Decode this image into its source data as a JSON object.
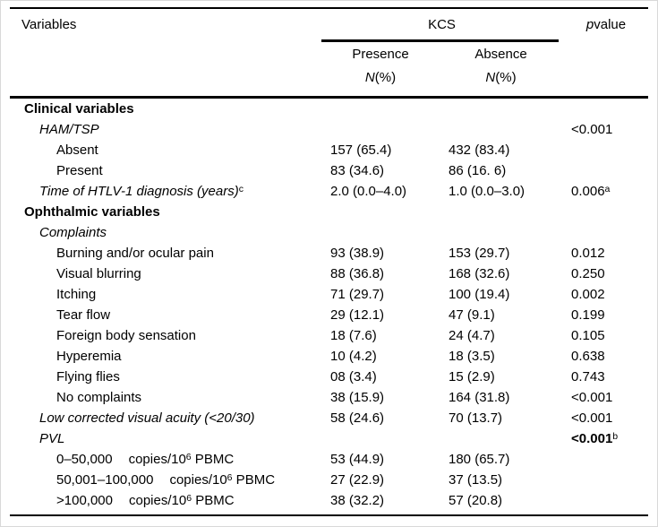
{
  "table": {
    "columns": {
      "variables": "Variables",
      "group": "KCS",
      "presence": "Presence",
      "absence": "Absence",
      "n_label": [
        {
          "t": "N",
          "i": true
        },
        {
          "t": " (%)"
        }
      ],
      "p_value": [
        {
          "t": "p",
          "i": true
        },
        {
          "t": " value"
        }
      ]
    },
    "rows": [
      {
        "indent": 0,
        "label": [
          {
            "t": "Clinical variables",
            "b": true
          }
        ],
        "presence": "",
        "absence": "",
        "p": []
      },
      {
        "indent": 1,
        "label": [
          {
            "t": "HAM/TSP",
            "i": true
          }
        ],
        "presence": "",
        "absence": "",
        "p": [
          {
            "t": "<0.001"
          }
        ]
      },
      {
        "indent": 2,
        "label": [
          {
            "t": "Absent"
          }
        ],
        "presence": "157 (65.4)",
        "absence": "432 (83.4)",
        "p": []
      },
      {
        "indent": 2,
        "label": [
          {
            "t": "Present"
          }
        ],
        "presence": "83 (34.6)",
        "absence": "86 (16. 6)",
        "p": []
      },
      {
        "indent": 1,
        "label": [
          {
            "t": "Time of HTLV-1 diagnosis (years)",
            "i": true
          },
          {
            "t": "c",
            "sup": true
          }
        ],
        "presence": "2.0 (0.0–4.0)",
        "absence": "1.0 (0.0–3.0)",
        "p": [
          {
            "t": "0.006"
          },
          {
            "t": "a",
            "sup": true
          }
        ]
      },
      {
        "indent": 0,
        "label": [
          {
            "t": "Ophthalmic variables",
            "b": true
          }
        ],
        "presence": "",
        "absence": "",
        "p": []
      },
      {
        "indent": 1,
        "label": [
          {
            "t": "Complaints",
            "i": true
          }
        ],
        "presence": "",
        "absence": "",
        "p": []
      },
      {
        "indent": 2,
        "label": [
          {
            "t": "Burning and/or ocular pain"
          }
        ],
        "presence": "93 (38.9)",
        "absence": "153 (29.7)",
        "p": [
          {
            "t": "0.012"
          }
        ]
      },
      {
        "indent": 2,
        "label": [
          {
            "t": "Visual blurring"
          }
        ],
        "presence": "88 (36.8)",
        "absence": "168 (32.6)",
        "p": [
          {
            "t": "0.250"
          }
        ]
      },
      {
        "indent": 2,
        "label": [
          {
            "t": "Itching"
          }
        ],
        "presence": "71 (29.7)",
        "absence": "100 (19.4)",
        "p": [
          {
            "t": "0.002"
          }
        ]
      },
      {
        "indent": 2,
        "label": [
          {
            "t": "Tear flow"
          }
        ],
        "presence": "29 (12.1)",
        "absence": "47 (9.1)",
        "p": [
          {
            "t": "0.199"
          }
        ]
      },
      {
        "indent": 2,
        "label": [
          {
            "t": "Foreign body sensation"
          }
        ],
        "presence": "18 (7.6)",
        "absence": "24 (4.7)",
        "p": [
          {
            "t": "0.105"
          }
        ]
      },
      {
        "indent": 2,
        "label": [
          {
            "t": "Hyperemia"
          }
        ],
        "presence": "10 (4.2)",
        "absence": "18 (3.5)",
        "p": [
          {
            "t": "0.638"
          }
        ]
      },
      {
        "indent": 2,
        "label": [
          {
            "t": "Flying flies"
          }
        ],
        "presence": "08 (3.4)",
        "absence": "15 (2.9)",
        "p": [
          {
            "t": "0.743"
          }
        ]
      },
      {
        "indent": 2,
        "label": [
          {
            "t": "No complaints"
          }
        ],
        "presence": "38 (15.9)",
        "absence": "164 (31.8)",
        "p": [
          {
            "t": "<0.001"
          }
        ]
      },
      {
        "indent": 1,
        "label": [
          {
            "t": "Low corrected visual acuity (<20/30)",
            "i": true
          }
        ],
        "presence": "58 (24.6)",
        "absence": "70 (13.7)",
        "p": [
          {
            "t": "<0.001"
          }
        ]
      },
      {
        "indent": 1,
        "label": [
          {
            "t": "PVL",
            "i": true
          }
        ],
        "presence": "",
        "absence": "",
        "p": [
          {
            "t": "<0.001",
            "b": true
          },
          {
            "t": "b",
            "sup": true
          }
        ]
      },
      {
        "indent": 2,
        "label": [
          {
            "t": "0–50,000"
          },
          {
            "t": "copies/10",
            "gap": true
          },
          {
            "t": "6",
            "sup": true
          },
          {
            "t": " PBMC"
          }
        ],
        "presence": "53 (44.9)",
        "absence": "180 (65.7)",
        "p": []
      },
      {
        "indent": 2,
        "label": [
          {
            "t": "50,001–100,000"
          },
          {
            "t": "copies/10",
            "gap": true
          },
          {
            "t": "6",
            "sup": true
          },
          {
            "t": " PBMC"
          }
        ],
        "presence": "27 (22.9)",
        "absence": "37 (13.5)",
        "p": []
      },
      {
        "indent": 2,
        "label": [
          {
            "t": ">100,000"
          },
          {
            "t": "copies/10",
            "gap": true
          },
          {
            "t": "6",
            "sup": true
          },
          {
            "t": " PBMC"
          }
        ],
        "presence": "38 (32.2)",
        "absence": "57 (20.8)",
        "p": []
      }
    ]
  }
}
